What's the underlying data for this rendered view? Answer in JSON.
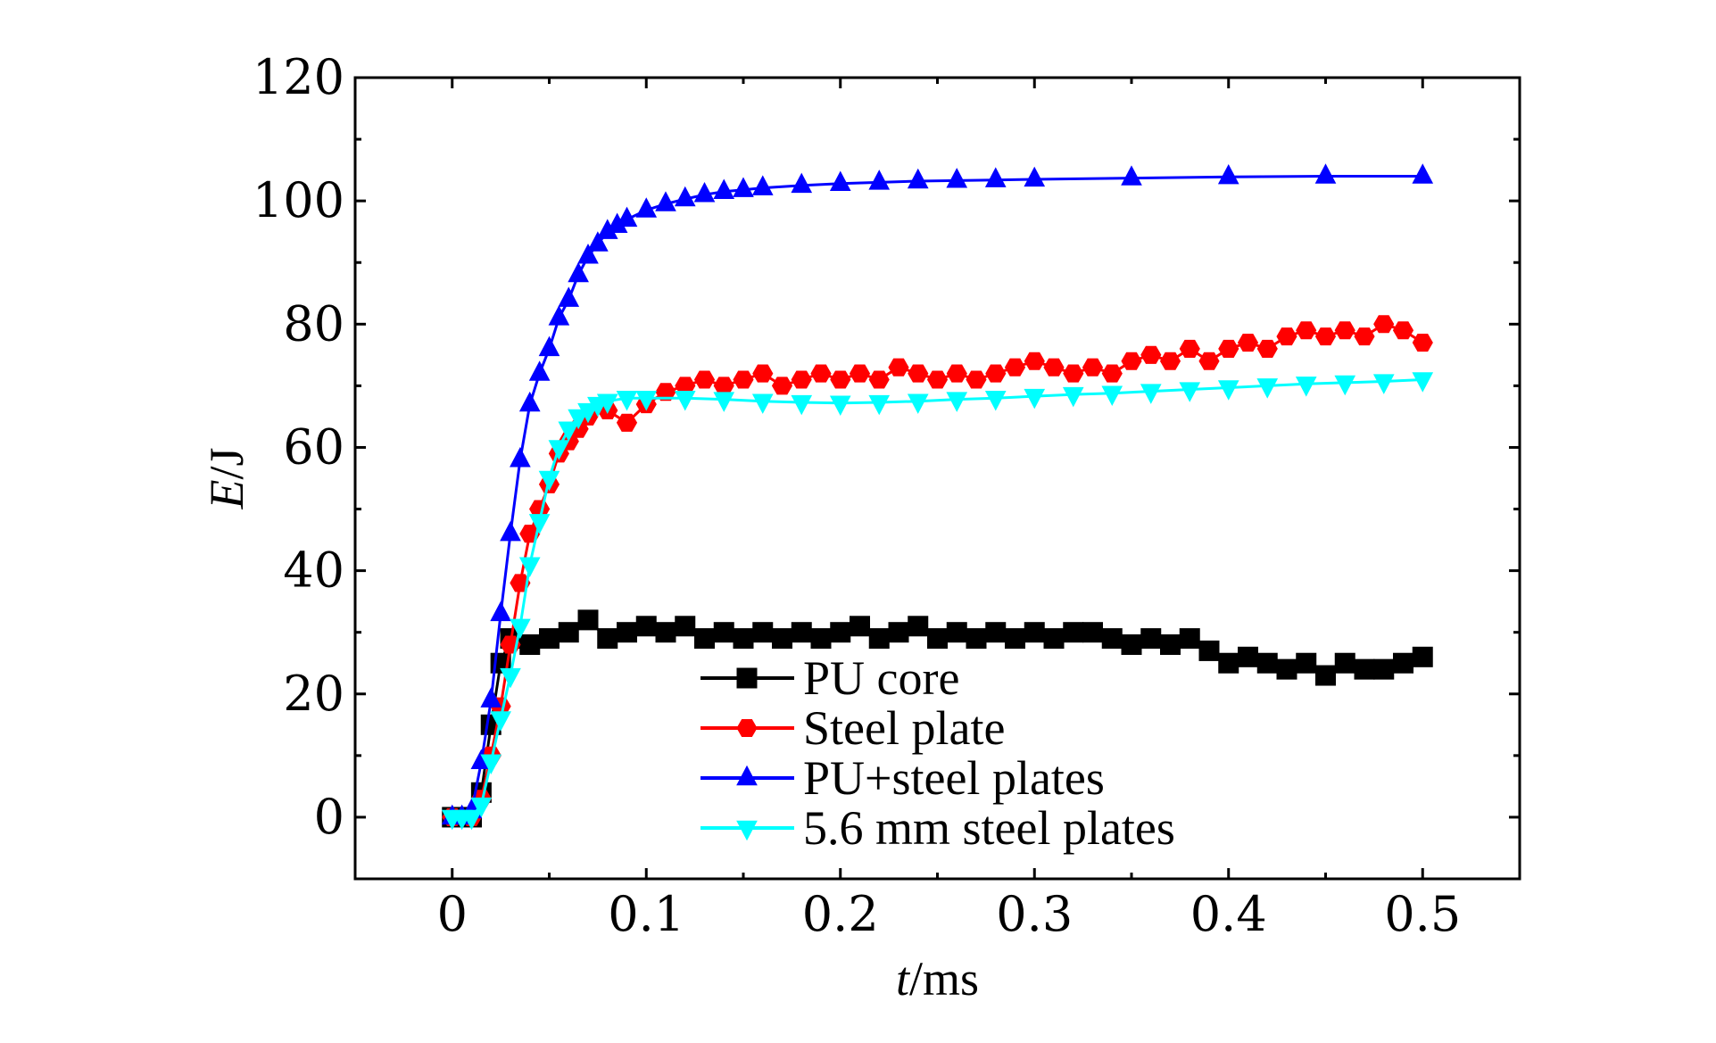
{
  "chart_data": {
    "type": "line",
    "title": "",
    "xlabel": {
      "italic": "t",
      "rest": "/ms"
    },
    "ylabel": {
      "italic": "E",
      "rest": "/J"
    },
    "xlim": [
      -0.05,
      0.55
    ],
    "ylim": [
      -10,
      120
    ],
    "xticks": [
      {
        "value": 0,
        "label": "0"
      },
      {
        "value": 0.1,
        "label": "0.1"
      },
      {
        "value": 0.2,
        "label": "0.2"
      },
      {
        "value": 0.3,
        "label": "0.3"
      },
      {
        "value": 0.4,
        "label": "0.4"
      },
      {
        "value": 0.5,
        "label": "0.5"
      }
    ],
    "yticks": [
      {
        "value": 0,
        "label": "0"
      },
      {
        "value": 20,
        "label": "20"
      },
      {
        "value": 40,
        "label": "40"
      },
      {
        "value": 60,
        "label": "60"
      },
      {
        "value": 80,
        "label": "80"
      },
      {
        "value": 100,
        "label": "100"
      },
      {
        "value": 120,
        "label": "120"
      }
    ],
    "grid": false,
    "legend": "bottom-center",
    "series": [
      {
        "name": "PU core",
        "color": "#000000",
        "marker": "square",
        "points": [
          [
            0,
            0
          ],
          [
            0.01,
            0
          ],
          [
            0.015,
            4
          ],
          [
            0.02,
            15
          ],
          [
            0.025,
            25
          ],
          [
            0.03,
            29
          ],
          [
            0.04,
            28
          ],
          [
            0.05,
            29
          ],
          [
            0.06,
            30
          ],
          [
            0.07,
            32
          ],
          [
            0.08,
            29
          ],
          [
            0.09,
            30
          ],
          [
            0.1,
            31
          ],
          [
            0.11,
            30
          ],
          [
            0.12,
            31
          ],
          [
            0.13,
            29
          ],
          [
            0.14,
            30
          ],
          [
            0.15,
            29
          ],
          [
            0.16,
            30
          ],
          [
            0.17,
            29
          ],
          [
            0.18,
            30
          ],
          [
            0.19,
            29
          ],
          [
            0.2,
            30
          ],
          [
            0.21,
            31
          ],
          [
            0.22,
            29
          ],
          [
            0.23,
            30
          ],
          [
            0.24,
            31
          ],
          [
            0.25,
            29
          ],
          [
            0.26,
            30
          ],
          [
            0.27,
            29
          ],
          [
            0.28,
            30
          ],
          [
            0.29,
            29
          ],
          [
            0.3,
            30
          ],
          [
            0.31,
            29
          ],
          [
            0.32,
            30
          ],
          [
            0.33,
            30
          ],
          [
            0.34,
            29
          ],
          [
            0.35,
            28
          ],
          [
            0.36,
            29
          ],
          [
            0.37,
            28
          ],
          [
            0.38,
            29
          ],
          [
            0.39,
            27
          ],
          [
            0.4,
            25
          ],
          [
            0.41,
            26
          ],
          [
            0.42,
            25
          ],
          [
            0.43,
            24
          ],
          [
            0.44,
            25
          ],
          [
            0.45,
            23
          ],
          [
            0.46,
            25
          ],
          [
            0.47,
            24
          ],
          [
            0.48,
            24
          ],
          [
            0.49,
            25
          ],
          [
            0.5,
            26
          ]
        ]
      },
      {
        "name": "Steel plate",
        "color": "#ff0000",
        "marker": "hexagon",
        "points": [
          [
            0,
            0
          ],
          [
            0.01,
            0
          ],
          [
            0.015,
            3
          ],
          [
            0.02,
            10
          ],
          [
            0.025,
            18
          ],
          [
            0.03,
            28
          ],
          [
            0.035,
            38
          ],
          [
            0.04,
            46
          ],
          [
            0.045,
            50
          ],
          [
            0.05,
            54
          ],
          [
            0.055,
            59
          ],
          [
            0.06,
            61
          ],
          [
            0.065,
            63
          ],
          [
            0.07,
            65
          ],
          [
            0.08,
            66
          ],
          [
            0.09,
            64
          ],
          [
            0.1,
            67
          ],
          [
            0.11,
            69
          ],
          [
            0.12,
            70
          ],
          [
            0.13,
            71
          ],
          [
            0.14,
            70
          ],
          [
            0.15,
            71
          ],
          [
            0.16,
            72
          ],
          [
            0.17,
            70
          ],
          [
            0.18,
            71
          ],
          [
            0.19,
            72
          ],
          [
            0.2,
            71
          ],
          [
            0.21,
            72
          ],
          [
            0.22,
            71
          ],
          [
            0.23,
            73
          ],
          [
            0.24,
            72
          ],
          [
            0.25,
            71
          ],
          [
            0.26,
            72
          ],
          [
            0.27,
            71
          ],
          [
            0.28,
            72
          ],
          [
            0.29,
            73
          ],
          [
            0.3,
            74
          ],
          [
            0.31,
            73
          ],
          [
            0.32,
            72
          ],
          [
            0.33,
            73
          ],
          [
            0.34,
            72
          ],
          [
            0.35,
            74
          ],
          [
            0.36,
            75
          ],
          [
            0.37,
            74
          ],
          [
            0.38,
            76
          ],
          [
            0.39,
            74
          ],
          [
            0.4,
            76
          ],
          [
            0.41,
            77
          ],
          [
            0.42,
            76
          ],
          [
            0.43,
            78
          ],
          [
            0.44,
            79
          ],
          [
            0.45,
            78
          ],
          [
            0.46,
            79
          ],
          [
            0.47,
            78
          ],
          [
            0.48,
            80
          ],
          [
            0.49,
            79
          ],
          [
            0.5,
            77
          ]
        ]
      },
      {
        "name": "PU+steel plates",
        "color": "#0000ff",
        "marker": "triangle-up",
        "points": [
          [
            0,
            0
          ],
          [
            0.005,
            0
          ],
          [
            0.01,
            1
          ],
          [
            0.015,
            9
          ],
          [
            0.02,
            19
          ],
          [
            0.025,
            33
          ],
          [
            0.03,
            46
          ],
          [
            0.035,
            58
          ],
          [
            0.04,
            67
          ],
          [
            0.045,
            72
          ],
          [
            0.05,
            76
          ],
          [
            0.055,
            81
          ],
          [
            0.06,
            84
          ],
          [
            0.065,
            88
          ],
          [
            0.07,
            91
          ],
          [
            0.075,
            93
          ],
          [
            0.08,
            95
          ],
          [
            0.085,
            96
          ],
          [
            0.09,
            97
          ],
          [
            0.1,
            98.5
          ],
          [
            0.11,
            99.5
          ],
          [
            0.12,
            100.3
          ],
          [
            0.13,
            101
          ],
          [
            0.14,
            101.5
          ],
          [
            0.15,
            101.8
          ],
          [
            0.16,
            102.1
          ],
          [
            0.18,
            102.5
          ],
          [
            0.2,
            102.8
          ],
          [
            0.22,
            103
          ],
          [
            0.24,
            103.2
          ],
          [
            0.26,
            103.3
          ],
          [
            0.28,
            103.4
          ],
          [
            0.3,
            103.5
          ],
          [
            0.35,
            103.7
          ],
          [
            0.4,
            103.9
          ],
          [
            0.45,
            104
          ],
          [
            0.5,
            104
          ]
        ]
      },
      {
        "name": "5.6 mm steel plates",
        "color": "#00ffff",
        "marker": "triangle-down",
        "points": [
          [
            0,
            0
          ],
          [
            0.005,
            0
          ],
          [
            0.01,
            0
          ],
          [
            0.015,
            2
          ],
          [
            0.02,
            9
          ],
          [
            0.025,
            16
          ],
          [
            0.03,
            23
          ],
          [
            0.035,
            31
          ],
          [
            0.04,
            41
          ],
          [
            0.045,
            48
          ],
          [
            0.05,
            55
          ],
          [
            0.055,
            60
          ],
          [
            0.06,
            63
          ],
          [
            0.065,
            65
          ],
          [
            0.07,
            66
          ],
          [
            0.075,
            67
          ],
          [
            0.08,
            67.5
          ],
          [
            0.09,
            68
          ],
          [
            0.1,
            68
          ],
          [
            0.12,
            68
          ],
          [
            0.14,
            67.8
          ],
          [
            0.16,
            67.5
          ],
          [
            0.18,
            67.3
          ],
          [
            0.2,
            67.2
          ],
          [
            0.22,
            67.3
          ],
          [
            0.24,
            67.5
          ],
          [
            0.26,
            67.8
          ],
          [
            0.28,
            68
          ],
          [
            0.3,
            68.3
          ],
          [
            0.32,
            68.6
          ],
          [
            0.34,
            68.8
          ],
          [
            0.36,
            69.1
          ],
          [
            0.38,
            69.4
          ],
          [
            0.4,
            69.7
          ],
          [
            0.42,
            70
          ],
          [
            0.44,
            70.3
          ],
          [
            0.46,
            70.5
          ],
          [
            0.48,
            70.7
          ],
          [
            0.5,
            71
          ]
        ]
      }
    ]
  }
}
